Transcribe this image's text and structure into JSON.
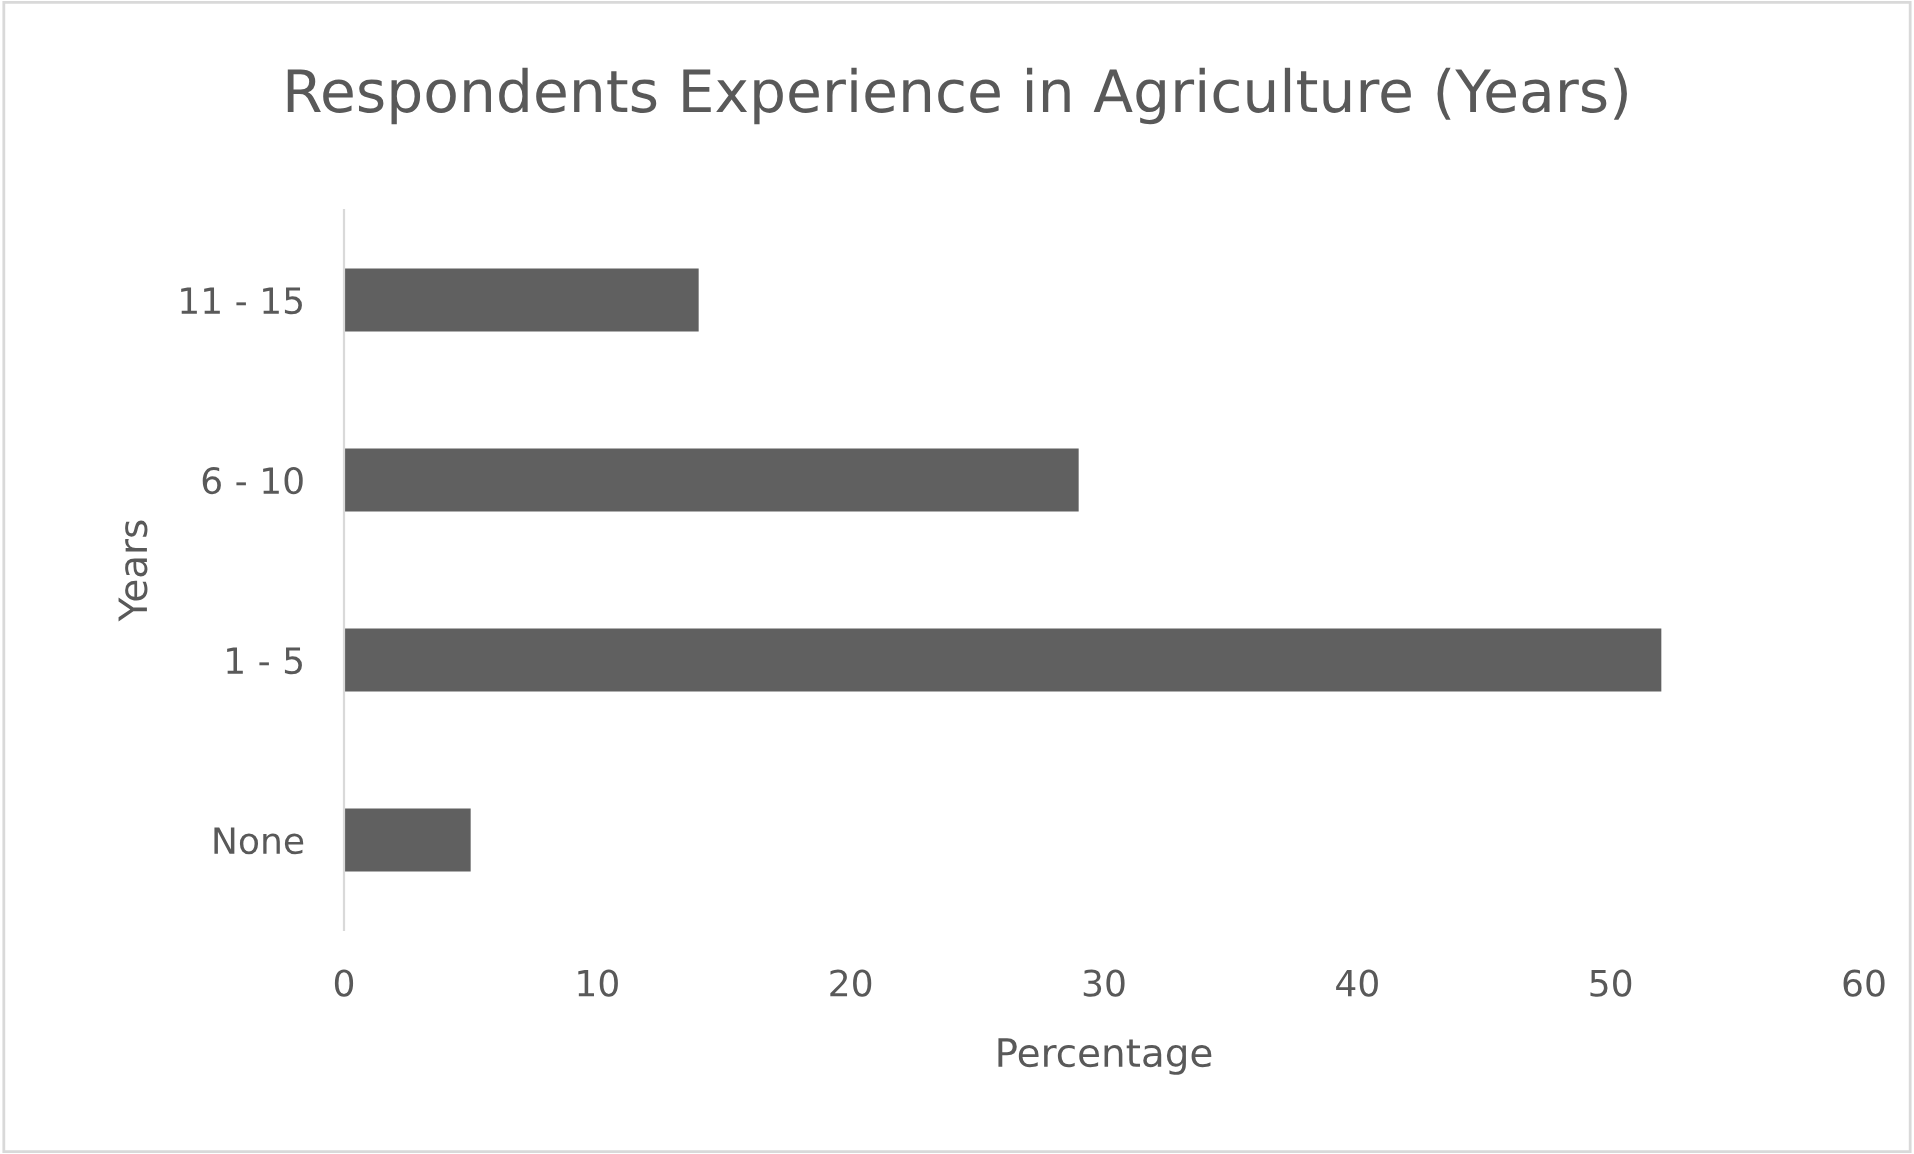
{
  "chart_data": {
    "type": "bar",
    "orientation": "horizontal",
    "title": "Respondents Experience in Agriculture (Years)",
    "xlabel": "Percentage",
    "ylabel": "Years",
    "categories": [
      "11 - 15",
      "6 - 10",
      "1 - 5",
      "None"
    ],
    "values": [
      14,
      29,
      52,
      5
    ],
    "color": "#606060",
    "xlim": [
      0,
      60
    ],
    "xticks": [
      0,
      10,
      20,
      30,
      40,
      50,
      60
    ],
    "grid": false,
    "legend": false
  }
}
